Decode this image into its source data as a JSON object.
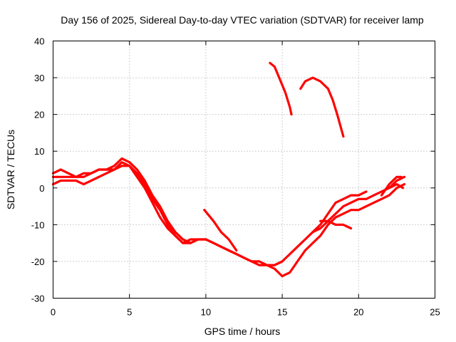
{
  "chart_data": {
    "type": "line",
    "title": "Day 156 of 2025, Sidereal Day-to-day VTEC variation (SDTVAR) for receiver lamp",
    "xlabel": "GPS time / hours",
    "ylabel": "SDTVAR / TECUs",
    "xlim": [
      0,
      25
    ],
    "ylim": [
      -30,
      40
    ],
    "xticks": [
      0,
      5,
      10,
      15,
      20,
      25
    ],
    "yticks": [
      -30,
      -20,
      -10,
      0,
      10,
      20,
      30,
      40
    ],
    "xtick_labels": [
      "0",
      "5",
      "10",
      "15",
      "20",
      "25"
    ],
    "ytick_labels": [
      "-30",
      "-20",
      "-10",
      "0",
      "10",
      "20",
      "30",
      "40"
    ],
    "grid": true,
    "color": "#ff0000",
    "series": [
      {
        "name": "track-a",
        "x": [
          0.0,
          0.5,
          1.0,
          1.5,
          2.0,
          2.5,
          3.0,
          3.5,
          4.0,
          4.5,
          5.0,
          5.5,
          6.0,
          6.5,
          7.0,
          7.5,
          8.0,
          8.5,
          9.0,
          9.5,
          10.0,
          10.5,
          11.0,
          11.5,
          12.0
        ],
        "y": [
          4,
          5,
          4,
          3,
          3,
          4,
          5,
          5,
          6,
          8,
          7,
          5,
          2,
          -2,
          -5,
          -9,
          -12,
          -14,
          -15,
          -14,
          -14,
          -15,
          -16,
          -17,
          -18
        ]
      },
      {
        "name": "track-b",
        "x": [
          0.0,
          0.5,
          1.0,
          1.5,
          2.0,
          2.5,
          3.0,
          3.5,
          4.0,
          4.5,
          5.0,
          5.5,
          6.0,
          6.5,
          7.0,
          7.5,
          8.0,
          8.5,
          9.0,
          9.5,
          10.0,
          10.5,
          11.0,
          11.5,
          12.0,
          12.5,
          13.0,
          13.5,
          14.0,
          14.5,
          15.0
        ],
        "y": [
          1,
          2,
          2,
          2,
          1,
          2,
          3,
          4,
          5,
          7,
          6,
          3,
          0,
          -4,
          -8,
          -11,
          -13,
          -15,
          -14,
          -14,
          -14,
          -15,
          -16,
          -17,
          -18,
          -19,
          -20,
          -20,
          -21,
          -21,
          -20
        ]
      },
      {
        "name": "track-c",
        "x": [
          0.0,
          0.5,
          1.0,
          1.5,
          2.0,
          2.5,
          3.0,
          3.5,
          4.0,
          4.5,
          5.0,
          5.5,
          6.0,
          6.5,
          7.0,
          7.5,
          8.0,
          8.5,
          9.0
        ],
        "y": [
          3,
          3,
          3,
          3,
          4,
          4,
          5,
          5,
          5,
          6,
          6,
          4,
          1,
          -3,
          -6,
          -10,
          -13,
          -15,
          -15
        ]
      },
      {
        "name": "track-d",
        "x": [
          9.9,
          10.5,
          11.0,
          11.5,
          12.0
        ],
        "y": [
          -6,
          -9,
          -12,
          -14,
          -17
        ]
      },
      {
        "name": "track-e",
        "x": [
          12.0,
          12.5,
          13.0,
          13.5,
          14.0,
          14.5,
          15.0,
          15.5,
          16.0,
          16.5,
          17.0,
          17.5,
          18.0,
          18.5,
          19.0,
          19.5,
          20.0,
          20.5,
          21.0,
          21.5,
          22.0,
          22.5,
          23.0
        ],
        "y": [
          -18,
          -19,
          -20,
          -21,
          -21,
          -22,
          -24,
          -23,
          -20,
          -17,
          -15,
          -13,
          -10,
          -8,
          -7,
          -6,
          -6,
          -5,
          -4,
          -3,
          -2,
          0,
          1
        ]
      },
      {
        "name": "track-f",
        "x": [
          14.5,
          15.0,
          15.5,
          16.0,
          16.5,
          17.0,
          17.5,
          18.0,
          18.5,
          19.0,
          19.5,
          20.0,
          20.5,
          21.0,
          21.5,
          22.0,
          22.5,
          23.0
        ],
        "y": [
          -21,
          -20,
          -18,
          -16,
          -14,
          -12,
          -11,
          -9,
          -7,
          -5,
          -4,
          -3,
          -3,
          -2,
          -1,
          0,
          2,
          3
        ]
      },
      {
        "name": "track-g",
        "x": [
          17.0,
          17.5,
          18.0,
          18.5,
          19.0,
          19.5,
          20.0,
          20.5
        ],
        "y": [
          -12,
          -10,
          -7,
          -4,
          -3,
          -2,
          -2,
          -1
        ]
      },
      {
        "name": "track-h",
        "x": [
          17.5,
          18.0,
          18.5,
          19.0,
          19.5
        ],
        "y": [
          -9,
          -9,
          -10,
          -10,
          -11
        ]
      },
      {
        "name": "track-i",
        "x": [
          21.5,
          22.0,
          22.5,
          22.8
        ],
        "y": [
          -2,
          1,
          3,
          3
        ]
      },
      {
        "name": "track-j",
        "x": [
          22.0,
          22.5,
          22.9
        ],
        "y": [
          0,
          1,
          0
        ]
      },
      {
        "name": "track-k",
        "x": [
          14.2,
          14.5,
          14.9,
          15.2,
          15.5,
          15.6
        ],
        "y": [
          34,
          33,
          29,
          26,
          22,
          20
        ]
      },
      {
        "name": "track-l",
        "x": [
          16.2,
          16.5,
          17.0,
          17.5,
          18.0,
          18.3,
          18.6,
          18.8,
          19.0
        ],
        "y": [
          27,
          29,
          30,
          29,
          27,
          24,
          20,
          17,
          14
        ]
      }
    ]
  }
}
